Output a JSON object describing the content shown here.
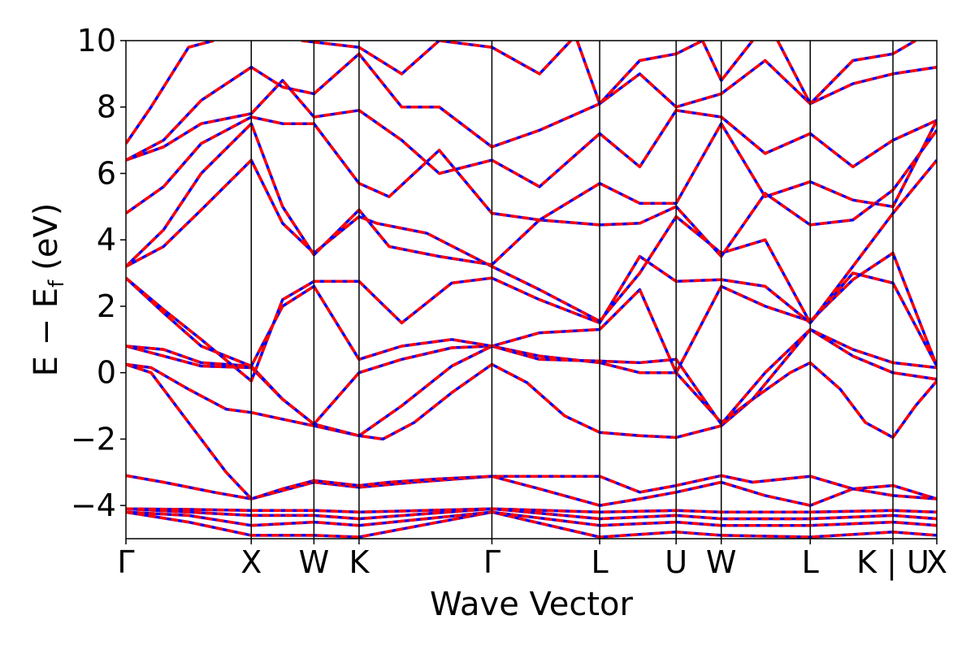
{
  "chart_data": {
    "type": "line",
    "title": "",
    "xlabel": "Wave Vector",
    "ylabel_main": "E − E",
    "ylabel_sub": "f",
    "ylabel_unit": "(eV)",
    "ylim": [
      -5,
      10
    ],
    "yticks": [
      -4,
      -2,
      0,
      2,
      4,
      6,
      8,
      10
    ],
    "ytick_labels": [
      "−4",
      "−2",
      "0",
      "2",
      "4",
      "6",
      "8",
      "10"
    ],
    "xlim": [
      0,
      6.47
    ],
    "kpoints": [
      {
        "label": "Γ",
        "x": 0.0
      },
      {
        "label": "X",
        "x": 1.0
      },
      {
        "label": "W",
        "x": 1.5
      },
      {
        "label": "K",
        "x": 1.86
      },
      {
        "label": "Γ",
        "x": 2.92
      },
      {
        "label": "L",
        "x": 3.78
      },
      {
        "label": "U",
        "x": 4.39
      },
      {
        "label": "W",
        "x": 4.75
      },
      {
        "label": "L",
        "x": 5.46
      },
      {
        "label": "K | U",
        "x": 6.12
      },
      {
        "label": "X",
        "x": 6.47
      }
    ],
    "grid": false,
    "legend": "none",
    "series_style": [
      {
        "color": "#ff0000",
        "dash": "solid"
      },
      {
        "color": "#0000ff",
        "dash": "dashed"
      }
    ],
    "bands": [
      [
        [
          0,
          -4.2
        ],
        [
          0.5,
          -4.5
        ],
        [
          1.0,
          -4.9
        ],
        [
          1.5,
          -4.9
        ],
        [
          1.86,
          -4.95
        ],
        [
          2.92,
          -4.2
        ],
        [
          3.78,
          -4.95
        ],
        [
          4.39,
          -4.8
        ],
        [
          4.75,
          -4.9
        ],
        [
          5.46,
          -4.95
        ],
        [
          6.12,
          -4.8
        ],
        [
          6.47,
          -4.9
        ]
      ],
      [
        [
          0,
          -4.2
        ],
        [
          0.5,
          -4.3
        ],
        [
          1.0,
          -4.6
        ],
        [
          1.5,
          -4.5
        ],
        [
          1.86,
          -4.6
        ],
        [
          2.92,
          -4.2
        ],
        [
          3.78,
          -4.6
        ],
        [
          4.39,
          -4.5
        ],
        [
          4.75,
          -4.6
        ],
        [
          5.46,
          -4.6
        ],
        [
          6.12,
          -4.5
        ],
        [
          6.47,
          -4.6
        ]
      ],
      [
        [
          0,
          -4.1
        ],
        [
          0.5,
          -4.2
        ],
        [
          1.0,
          -4.3
        ],
        [
          1.5,
          -4.3
        ],
        [
          1.86,
          -4.4
        ],
        [
          2.92,
          -4.1
        ],
        [
          3.78,
          -4.4
        ],
        [
          4.39,
          -4.3
        ],
        [
          4.75,
          -4.4
        ],
        [
          5.46,
          -4.4
        ],
        [
          6.12,
          -4.3
        ],
        [
          6.47,
          -4.4
        ]
      ],
      [
        [
          0,
          -4.1
        ],
        [
          0.5,
          -4.12
        ],
        [
          1.0,
          -4.15
        ],
        [
          1.5,
          -4.15
        ],
        [
          1.86,
          -4.2
        ],
        [
          2.92,
          -4.1
        ],
        [
          3.78,
          -4.2
        ],
        [
          4.39,
          -4.15
        ],
        [
          4.75,
          -4.2
        ],
        [
          5.46,
          -4.2
        ],
        [
          6.12,
          -4.15
        ],
        [
          6.47,
          -4.2
        ]
      ],
      [
        [
          0,
          -3.1
        ],
        [
          0.3,
          -3.3
        ],
        [
          0.7,
          -3.6
        ],
        [
          1.0,
          -3.8
        ],
        [
          1.5,
          -3.3
        ],
        [
          1.86,
          -3.45
        ],
        [
          2.3,
          -3.3
        ],
        [
          2.92,
          -3.12
        ],
        [
          3.78,
          -3.12
        ],
        [
          4.1,
          -3.6
        ],
        [
          4.39,
          -3.4
        ],
        [
          4.75,
          -3.1
        ],
        [
          5.0,
          -3.3
        ],
        [
          5.46,
          -3.12
        ],
        [
          5.8,
          -3.5
        ],
        [
          6.12,
          -3.7
        ],
        [
          6.47,
          -3.8
        ]
      ],
      [
        [
          0,
          0.25
        ],
        [
          0.2,
          0.0
        ],
        [
          0.5,
          -1.5
        ],
        [
          0.8,
          -3.0
        ],
        [
          1.0,
          -3.8
        ],
        [
          1.25,
          -3.5
        ],
        [
          1.5,
          -3.25
        ],
        [
          1.86,
          -3.4
        ],
        [
          2.1,
          -3.3
        ],
        [
          2.5,
          -3.2
        ],
        [
          2.92,
          -3.12
        ],
        [
          3.3,
          -3.5
        ],
        [
          3.78,
          -4.0
        ],
        [
          4.1,
          -3.8
        ],
        [
          4.39,
          -3.6
        ],
        [
          4.75,
          -3.3
        ],
        [
          5.1,
          -3.7
        ],
        [
          5.46,
          -4.0
        ],
        [
          5.8,
          -3.5
        ],
        [
          6.12,
          -3.4
        ],
        [
          6.47,
          -3.8
        ]
      ],
      [
        [
          0,
          0.25
        ],
        [
          0.2,
          0.15
        ],
        [
          0.5,
          -0.5
        ],
        [
          0.8,
          -1.1
        ],
        [
          1.0,
          -1.2
        ],
        [
          1.25,
          -1.4
        ],
        [
          1.5,
          -1.6
        ],
        [
          1.86,
          -1.9
        ],
        [
          2.05,
          -2.0
        ],
        [
          2.3,
          -1.5
        ],
        [
          2.6,
          -0.6
        ],
        [
          2.92,
          0.25
        ],
        [
          3.2,
          -0.3
        ],
        [
          3.5,
          -1.3
        ],
        [
          3.78,
          -1.8
        ],
        [
          4.1,
          -1.9
        ],
        [
          4.39,
          -1.95
        ],
        [
          4.75,
          -1.6
        ],
        [
          5.0,
          -0.8
        ],
        [
          5.3,
          0.0
        ],
        [
          5.46,
          0.3
        ],
        [
          5.7,
          -0.5
        ],
        [
          5.9,
          -1.5
        ],
        [
          6.12,
          -1.95
        ],
        [
          6.3,
          -1.0
        ],
        [
          6.47,
          -0.25
        ]
      ],
      [
        [
          0,
          0.8
        ],
        [
          0.3,
          0.5
        ],
        [
          0.6,
          0.2
        ],
        [
          1.0,
          0.15
        ],
        [
          1.25,
          -0.8
        ],
        [
          1.5,
          -1.55
        ],
        [
          1.86,
          -1.9
        ],
        [
          2.2,
          -1.0
        ],
        [
          2.6,
          0.2
        ],
        [
          2.92,
          0.8
        ],
        [
          3.3,
          0.5
        ],
        [
          3.78,
          0.3
        ],
        [
          4.1,
          0.0
        ],
        [
          4.39,
          0.0
        ],
        [
          4.75,
          -1.5
        ],
        [
          5.0,
          -0.8
        ],
        [
          5.46,
          1.3
        ],
        [
          5.8,
          0.5
        ],
        [
          6.12,
          0.0
        ],
        [
          6.47,
          -0.2
        ]
      ],
      [
        [
          0,
          0.8
        ],
        [
          0.3,
          0.7
        ],
        [
          0.6,
          0.3
        ],
        [
          1.0,
          0.2
        ],
        [
          1.25,
          -0.8
        ],
        [
          1.5,
          -1.55
        ],
        [
          1.86,
          0.0
        ],
        [
          2.2,
          0.4
        ],
        [
          2.6,
          0.75
        ],
        [
          2.92,
          0.8
        ],
        [
          3.3,
          0.4
        ],
        [
          3.78,
          0.35
        ],
        [
          4.1,
          0.3
        ],
        [
          4.39,
          0.4
        ],
        [
          4.75,
          -1.55
        ],
        [
          5.1,
          0.0
        ],
        [
          5.46,
          1.3
        ],
        [
          5.8,
          0.7
        ],
        [
          6.12,
          0.3
        ],
        [
          6.47,
          0.15
        ]
      ],
      [
        [
          0,
          2.85
        ],
        [
          0.3,
          1.8
        ],
        [
          0.6,
          0.8
        ],
        [
          1.0,
          0.2
        ],
        [
          1.25,
          2.0
        ],
        [
          1.5,
          2.6
        ],
        [
          1.86,
          0.4
        ],
        [
          2.2,
          0.8
        ],
        [
          2.6,
          1.0
        ],
        [
          2.92,
          0.8
        ],
        [
          3.3,
          1.2
        ],
        [
          3.78,
          1.3
        ],
        [
          4.1,
          2.5
        ],
        [
          4.39,
          0.0
        ],
        [
          4.75,
          2.6
        ],
        [
          5.1,
          2.0
        ],
        [
          5.46,
          1.55
        ],
        [
          5.8,
          2.8
        ],
        [
          6.12,
          3.6
        ],
        [
          6.47,
          0.2
        ]
      ],
      [
        [
          0,
          2.85
        ],
        [
          0.3,
          1.9
        ],
        [
          0.6,
          1.0
        ],
        [
          1.0,
          -0.25
        ],
        [
          1.25,
          2.2
        ],
        [
          1.5,
          2.75
        ],
        [
          1.86,
          2.75
        ],
        [
          2.2,
          1.5
        ],
        [
          2.6,
          2.7
        ],
        [
          2.92,
          2.85
        ],
        [
          3.3,
          2.2
        ],
        [
          3.78,
          1.5
        ],
        [
          4.1,
          3.5
        ],
        [
          4.39,
          2.75
        ],
        [
          4.75,
          2.8
        ],
        [
          5.1,
          2.6
        ],
        [
          5.46,
          1.5
        ],
        [
          5.8,
          3.0
        ],
        [
          6.12,
          2.7
        ],
        [
          6.47,
          0.2
        ]
      ],
      [
        [
          0,
          3.2
        ],
        [
          0.3,
          3.8
        ],
        [
          0.6,
          4.9
        ],
        [
          1.0,
          6.4
        ],
        [
          1.25,
          4.5
        ],
        [
          1.5,
          3.6
        ],
        [
          1.86,
          4.7
        ],
        [
          2.0,
          4.5
        ],
        [
          2.4,
          4.2
        ],
        [
          2.92,
          3.2
        ],
        [
          3.3,
          2.5
        ],
        [
          3.78,
          1.55
        ],
        [
          4.1,
          3.0
        ],
        [
          4.39,
          4.7
        ],
        [
          4.75,
          3.6
        ],
        [
          5.1,
          4.0
        ],
        [
          5.46,
          1.5
        ],
        [
          5.8,
          3.2
        ],
        [
          6.12,
          4.8
        ],
        [
          6.47,
          6.4
        ]
      ],
      [
        [
          0,
          3.2
        ],
        [
          0.3,
          4.3
        ],
        [
          0.6,
          6.0
        ],
        [
          1.0,
          7.5
        ],
        [
          1.25,
          5.0
        ],
        [
          1.5,
          3.55
        ],
        [
          1.86,
          4.9
        ],
        [
          2.1,
          3.8
        ],
        [
          2.5,
          3.5
        ],
        [
          2.92,
          3.25
        ],
        [
          3.3,
          4.6
        ],
        [
          3.78,
          4.45
        ],
        [
          4.1,
          4.5
        ],
        [
          4.39,
          5.0
        ],
        [
          4.75,
          3.5
        ],
        [
          5.1,
          5.4
        ],
        [
          5.46,
          4.45
        ],
        [
          5.8,
          4.6
        ],
        [
          6.12,
          5.5
        ],
        [
          6.47,
          7.3
        ]
      ],
      [
        [
          0,
          4.8
        ],
        [
          0.3,
          5.6
        ],
        [
          0.6,
          6.9
        ],
        [
          1.0,
          7.7
        ],
        [
          1.25,
          7.5
        ],
        [
          1.5,
          7.5
        ],
        [
          1.86,
          5.7
        ],
        [
          2.1,
          5.3
        ],
        [
          2.5,
          6.7
        ],
        [
          2.92,
          4.8
        ],
        [
          3.3,
          4.6
        ],
        [
          3.78,
          5.7
        ],
        [
          4.1,
          5.1
        ],
        [
          4.39,
          5.1
        ],
        [
          4.75,
          7.5
        ],
        [
          5.1,
          5.3
        ],
        [
          5.46,
          5.75
        ],
        [
          5.8,
          5.2
        ],
        [
          6.12,
          5.0
        ],
        [
          6.47,
          7.6
        ]
      ],
      [
        [
          0,
          6.4
        ],
        [
          0.3,
          6.8
        ],
        [
          0.6,
          7.5
        ],
        [
          1.0,
          7.8
        ],
        [
          1.25,
          8.8
        ],
        [
          1.5,
          7.7
        ],
        [
          1.86,
          7.9
        ],
        [
          2.2,
          7.0
        ],
        [
          2.5,
          6.0
        ],
        [
          2.92,
          6.4
        ],
        [
          3.3,
          5.6
        ],
        [
          3.78,
          7.2
        ],
        [
          4.1,
          6.2
        ],
        [
          4.39,
          7.9
        ],
        [
          4.75,
          7.7
        ],
        [
          5.1,
          6.6
        ],
        [
          5.46,
          7.2
        ],
        [
          5.8,
          6.2
        ],
        [
          6.12,
          7.0
        ],
        [
          6.47,
          7.6
        ]
      ],
      [
        [
          0,
          6.4
        ],
        [
          0.3,
          7.0
        ],
        [
          0.6,
          8.2
        ],
        [
          1.0,
          9.2
        ],
        [
          1.25,
          8.6
        ],
        [
          1.5,
          8.4
        ],
        [
          1.86,
          9.6
        ],
        [
          2.2,
          8.0
        ],
        [
          2.5,
          8.0
        ],
        [
          2.92,
          6.8
        ],
        [
          3.3,
          7.3
        ],
        [
          3.78,
          8.1
        ],
        [
          4.1,
          9.0
        ],
        [
          4.39,
          8.0
        ],
        [
          4.75,
          8.4
        ],
        [
          5.1,
          9.4
        ],
        [
          5.46,
          8.1
        ],
        [
          5.8,
          8.7
        ],
        [
          6.12,
          9.0
        ],
        [
          6.47,
          9.2
        ]
      ],
      [
        [
          0,
          6.9
        ],
        [
          0.2,
          8.0
        ],
        [
          0.5,
          9.8
        ],
        [
          0.7,
          10.0
        ]
      ],
      [
        [
          1.4,
          10.0
        ],
        [
          1.86,
          9.8
        ],
        [
          2.2,
          9.0
        ],
        [
          2.5,
          10.0
        ]
      ],
      [
        [
          2.5,
          10.0
        ],
        [
          2.92,
          9.8
        ],
        [
          3.3,
          9.0
        ],
        [
          3.55,
          10.0
        ]
      ],
      [
        [
          3.6,
          10.0
        ],
        [
          3.78,
          8.1
        ],
        [
          4.1,
          9.4
        ],
        [
          4.39,
          9.6
        ],
        [
          4.6,
          10.0
        ]
      ],
      [
        [
          4.6,
          10.0
        ],
        [
          4.75,
          8.8
        ],
        [
          5.0,
          10.0
        ]
      ],
      [
        [
          5.2,
          10.0
        ],
        [
          5.46,
          8.1
        ],
        [
          5.8,
          9.4
        ],
        [
          6.12,
          9.6
        ],
        [
          6.3,
          10.0
        ]
      ]
    ]
  }
}
